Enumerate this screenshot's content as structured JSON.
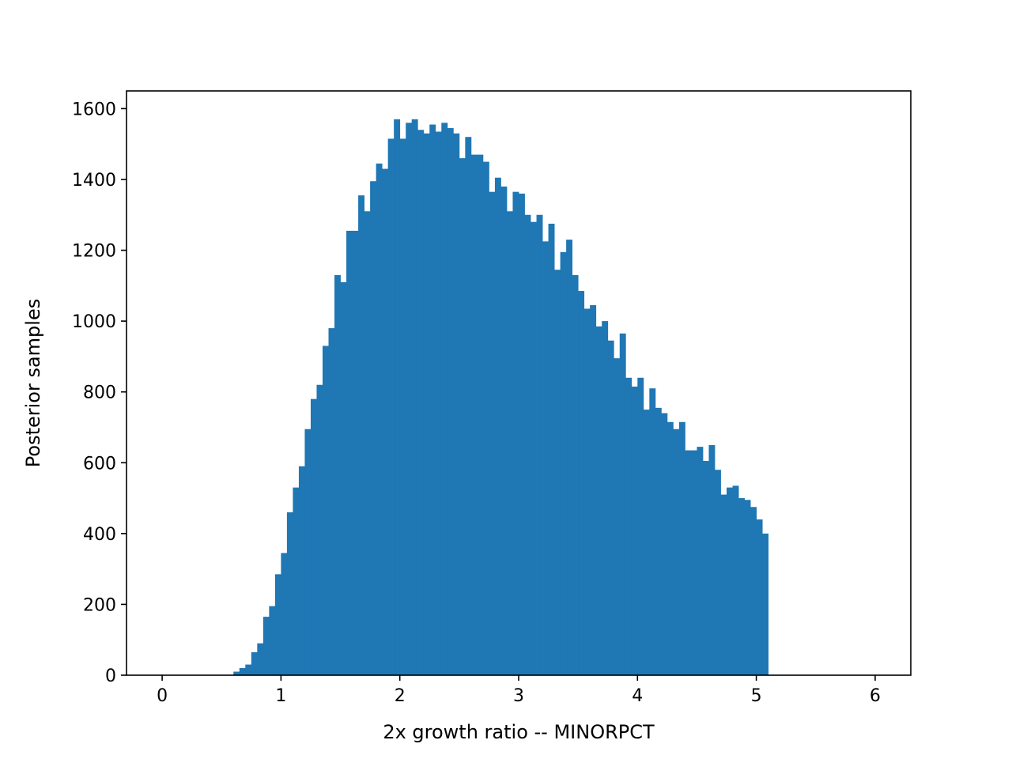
{
  "chart_data": {
    "type": "bar",
    "subtype": "histogram",
    "title": "",
    "xlabel": "2x growth ratio -- MINORPCT",
    "ylabel": "Posterior samples",
    "xlim": [
      -0.3,
      6.3
    ],
    "ylim": [
      0,
      1650
    ],
    "x_ticks": [
      0,
      1,
      2,
      3,
      4,
      5,
      6
    ],
    "y_ticks": [
      0,
      200,
      400,
      600,
      800,
      1000,
      1200,
      1400,
      1600
    ],
    "grid": false,
    "bar_color": "#1f77b4",
    "bin_start": 0.6,
    "bin_width": 0.05,
    "values": [
      10,
      20,
      30,
      65,
      90,
      165,
      195,
      285,
      345,
      460,
      530,
      590,
      695,
      780,
      820,
      930,
      980,
      1130,
      1110,
      1255,
      1255,
      1355,
      1310,
      1395,
      1445,
      1430,
      1515,
      1570,
      1515,
      1560,
      1570,
      1540,
      1530,
      1555,
      1535,
      1560,
      1545,
      1530,
      1460,
      1520,
      1470,
      1470,
      1450,
      1365,
      1405,
      1380,
      1310,
      1365,
      1360,
      1300,
      1280,
      1300,
      1225,
      1275,
      1145,
      1195,
      1230,
      1130,
      1085,
      1035,
      1045,
      985,
      1000,
      945,
      895,
      965,
      840,
      815,
      840,
      750,
      810,
      755,
      740,
      715,
      695,
      715,
      635,
      635,
      645,
      605,
      650,
      580,
      510,
      530,
      535,
      500,
      495,
      475,
      440,
      400
    ]
  }
}
